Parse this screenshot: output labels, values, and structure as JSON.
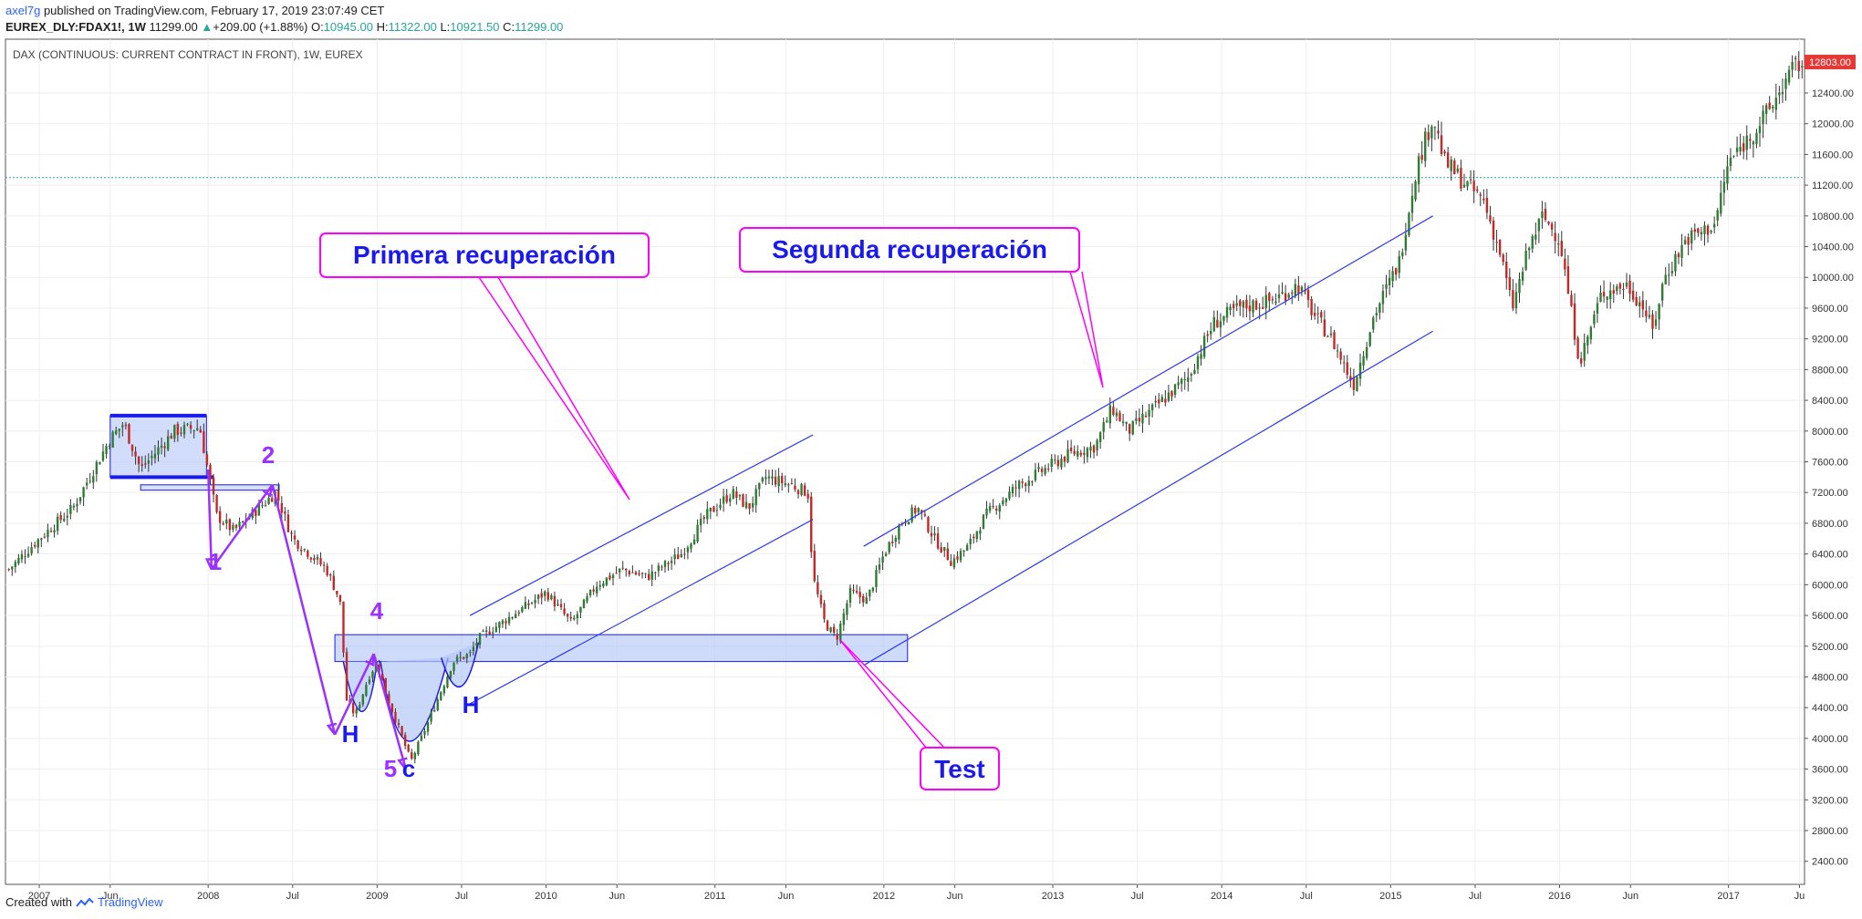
{
  "header": {
    "author": "axel7g",
    "published_text": "published on TradingView.com, February 17, 2019 23:07:49 CET",
    "symbol": "EUREX_DLY:FDAX1!, 1W",
    "last": "11299.00",
    "change_arrow": "▲",
    "change": "+209.00 (+1.88%)",
    "o_label": "O:",
    "o": "10945.00",
    "h_label": "H:",
    "h": "11322.00",
    "l_label": "L:",
    "l": "10921.50",
    "c_label": "C:",
    "c": "11299.00"
  },
  "chart_title": "DAX (CONTINUOUS: CURRENT CONTRACT IN FRONT), 1W, EUREX",
  "price_tag": "12803.00",
  "footer": {
    "created_with": "Created with",
    "brand": "TradingView",
    "logo_icon": "tradingview-logo-icon"
  },
  "annotations": {
    "primera": "Primera recuperación",
    "segunda": "Segunda recuperación",
    "test": "Test",
    "w1": "1",
    "w2": "2",
    "w4": "4",
    "w5": "5",
    "wc": "c",
    "h_left": "H",
    "h_right": "H"
  },
  "colors": {
    "up": "#26a69a",
    "down": "#ef5350",
    "candle_body_up": "#2e7d32",
    "candle_body_down": "#c62828",
    "annotation_magenta": "#ff00ff",
    "annotation_blue": "#0000ee",
    "wave_purple": "#9b30ff",
    "zone_fill": "#b3c7f7",
    "price_tag": "#e53935"
  },
  "chart_data": {
    "type": "candlestick",
    "title": "DAX (CONTINUOUS: CURRENT CONTRACT IN FRONT), 1W, EUREX",
    "ylim": [
      2100,
      13100
    ],
    "y_ticks": [
      2400,
      2800,
      3200,
      3600,
      4000,
      4400,
      4800,
      5200,
      5600,
      6000,
      6400,
      6800,
      7200,
      7600,
      8000,
      8400,
      8800,
      9200,
      9600,
      10000,
      10400,
      10800,
      11200,
      11600,
      12000,
      12400
    ],
    "x_tick_labels": [
      "2007",
      "Jun",
      "2008",
      "Jul",
      "2009",
      "Jul",
      "2010",
      "Jun",
      "2011",
      "Jun",
      "2012",
      "Jun",
      "2013",
      "Jul",
      "2014",
      "Jul",
      "2015",
      "Jul",
      "2016",
      "Jun",
      "2017",
      "Ju"
    ],
    "x_tick_dates": [
      2007.0,
      2007.42,
      2008.0,
      2008.5,
      2009.0,
      2009.5,
      2010.0,
      2010.42,
      2011.0,
      2011.42,
      2012.0,
      2012.42,
      2013.0,
      2013.5,
      2014.0,
      2014.5,
      2015.0,
      2015.5,
      2016.0,
      2016.42,
      2017.0,
      2017.42
    ],
    "xlim": [
      2006.8,
      2017.45
    ],
    "price_path": [
      [
        2006.82,
        6200
      ],
      [
        2007.0,
        6600
      ],
      [
        2007.2,
        7000
      ],
      [
        2007.42,
        7900
      ],
      [
        2007.5,
        8100
      ],
      [
        2007.6,
        7500
      ],
      [
        2007.8,
        8000
      ],
      [
        2007.95,
        8050
      ],
      [
        2008.05,
        6900
      ],
      [
        2008.15,
        6700
      ],
      [
        2008.25,
        6900
      ],
      [
        2008.4,
        7200
      ],
      [
        2008.5,
        6600
      ],
      [
        2008.6,
        6400
      ],
      [
        2008.7,
        6200
      ],
      [
        2008.78,
        5800
      ],
      [
        2008.82,
        4500
      ],
      [
        2008.87,
        4300
      ],
      [
        2008.95,
        4800
      ],
      [
        2009.0,
        5000
      ],
      [
        2009.05,
        4600
      ],
      [
        2009.15,
        4000
      ],
      [
        2009.2,
        3700
      ],
      [
        2009.3,
        4200
      ],
      [
        2009.45,
        5000
      ],
      [
        2009.55,
        5100
      ],
      [
        2009.6,
        5300
      ],
      [
        2009.8,
        5600
      ],
      [
        2010.0,
        5900
      ],
      [
        2010.15,
        5500
      ],
      [
        2010.3,
        6000
      ],
      [
        2010.45,
        6200
      ],
      [
        2010.6,
        6100
      ],
      [
        2010.8,
        6400
      ],
      [
        2010.95,
        6900
      ],
      [
        2011.1,
        7200
      ],
      [
        2011.2,
        7000
      ],
      [
        2011.3,
        7400
      ],
      [
        2011.45,
        7300
      ],
      [
        2011.55,
        7200
      ],
      [
        2011.58,
        6100
      ],
      [
        2011.65,
        5500
      ],
      [
        2011.72,
        5300
      ],
      [
        2011.8,
        5900
      ],
      [
        2011.9,
        5800
      ],
      [
        2012.0,
        6400
      ],
      [
        2012.1,
        6800
      ],
      [
        2012.2,
        7000
      ],
      [
        2012.3,
        6600
      ],
      [
        2012.4,
        6300
      ],
      [
        2012.5,
        6500
      ],
      [
        2012.6,
        6900
      ],
      [
        2012.8,
        7300
      ],
      [
        2012.95,
        7500
      ],
      [
        2013.1,
        7700
      ],
      [
        2013.25,
        7800
      ],
      [
        2013.35,
        8300
      ],
      [
        2013.45,
        8000
      ],
      [
        2013.6,
        8300
      ],
      [
        2013.8,
        8700
      ],
      [
        2013.95,
        9400
      ],
      [
        2014.1,
        9600
      ],
      [
        2014.3,
        9700
      ],
      [
        2014.45,
        9900
      ],
      [
        2014.55,
        9500
      ],
      [
        2014.65,
        9200
      ],
      [
        2014.78,
        8600
      ],
      [
        2014.9,
        9500
      ],
      [
        2015.05,
        10200
      ],
      [
        2015.15,
        11400
      ],
      [
        2015.25,
        12100
      ],
      [
        2015.32,
        11500
      ],
      [
        2015.45,
        11200
      ],
      [
        2015.55,
        11000
      ],
      [
        2015.65,
        10300
      ],
      [
        2015.72,
        9600
      ],
      [
        2015.82,
        10400
      ],
      [
        2015.9,
        10800
      ],
      [
        2016.0,
        10500
      ],
      [
        2016.08,
        9400
      ],
      [
        2016.12,
        8900
      ],
      [
        2016.25,
        9800
      ],
      [
        2016.4,
        9900
      ],
      [
        2016.5,
        9600
      ],
      [
        2016.55,
        9300
      ],
      [
        2016.62,
        10000
      ],
      [
        2016.75,
        10500
      ],
      [
        2016.85,
        10600
      ],
      [
        2016.92,
        10700
      ],
      [
        2017.0,
        11500
      ],
      [
        2017.15,
        11900
      ],
      [
        2017.25,
        12200
      ],
      [
        2017.32,
        12500
      ],
      [
        2017.4,
        12750
      ],
      [
        2017.44,
        12803
      ]
    ],
    "last_price": 12803,
    "current_price_line": 11299,
    "annotation_prices": {
      "consolidation_top": 8200,
      "consolidation_bottom": 7400,
      "support_top": 5350,
      "support_bottom": 5000,
      "wave1": 6200,
      "wave2": 7200,
      "wave3": 4100,
      "wave4": 5100,
      "wave5": 3600
    }
  }
}
